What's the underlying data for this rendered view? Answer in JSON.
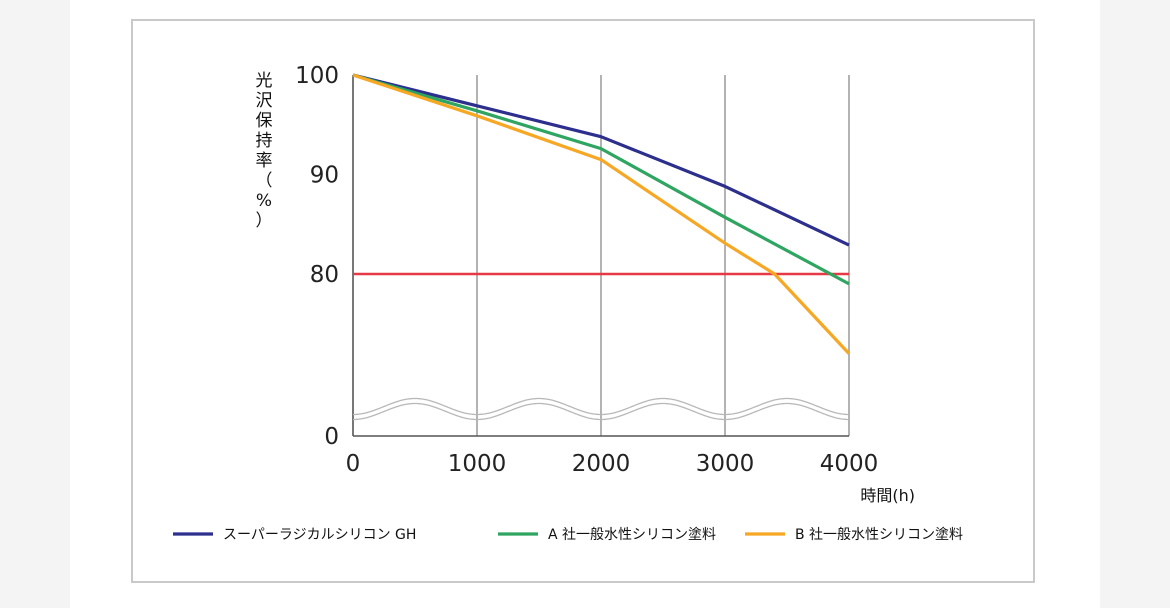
{
  "chart_data": {
    "type": "line",
    "title": "",
    "ylabel_chars": [
      "光",
      "沢",
      "保",
      "持",
      "率",
      "（",
      "%",
      "）"
    ],
    "xlabel": "時間(h)",
    "xlim": [
      0,
      4000
    ],
    "ylim": [
      70,
      100
    ],
    "axis_break": true,
    "xticks": [
      0,
      1000,
      2000,
      3000,
      4000
    ],
    "yticks": [
      0,
      80,
      90,
      100
    ],
    "grid": "vertical",
    "legend_position": "bottom",
    "reference_line": {
      "y": 80,
      "color": "#e53a45"
    },
    "series": [
      {
        "name": "スーパーラジカルシリコン GH",
        "color": "#2c2f8c",
        "x": [
          0,
          1000,
          2000,
          3000,
          4000
        ],
        "y": [
          100,
          96.9,
          93.8,
          88.8,
          82.9
        ]
      },
      {
        "name": "A 社一般水性シリコン塗料",
        "color": "#2fa561",
        "x": [
          0,
          1000,
          2000,
          3000,
          4000
        ],
        "y": [
          100,
          96.4,
          92.6,
          85.7,
          79
        ]
      },
      {
        "name": "B 社一般水性シリコン塗料",
        "color": "#f6a723",
        "x": [
          0,
          1000,
          2000,
          3000,
          3400,
          4000
        ],
        "y": [
          100,
          95.9,
          91.5,
          83.1,
          80,
          72
        ]
      }
    ]
  }
}
